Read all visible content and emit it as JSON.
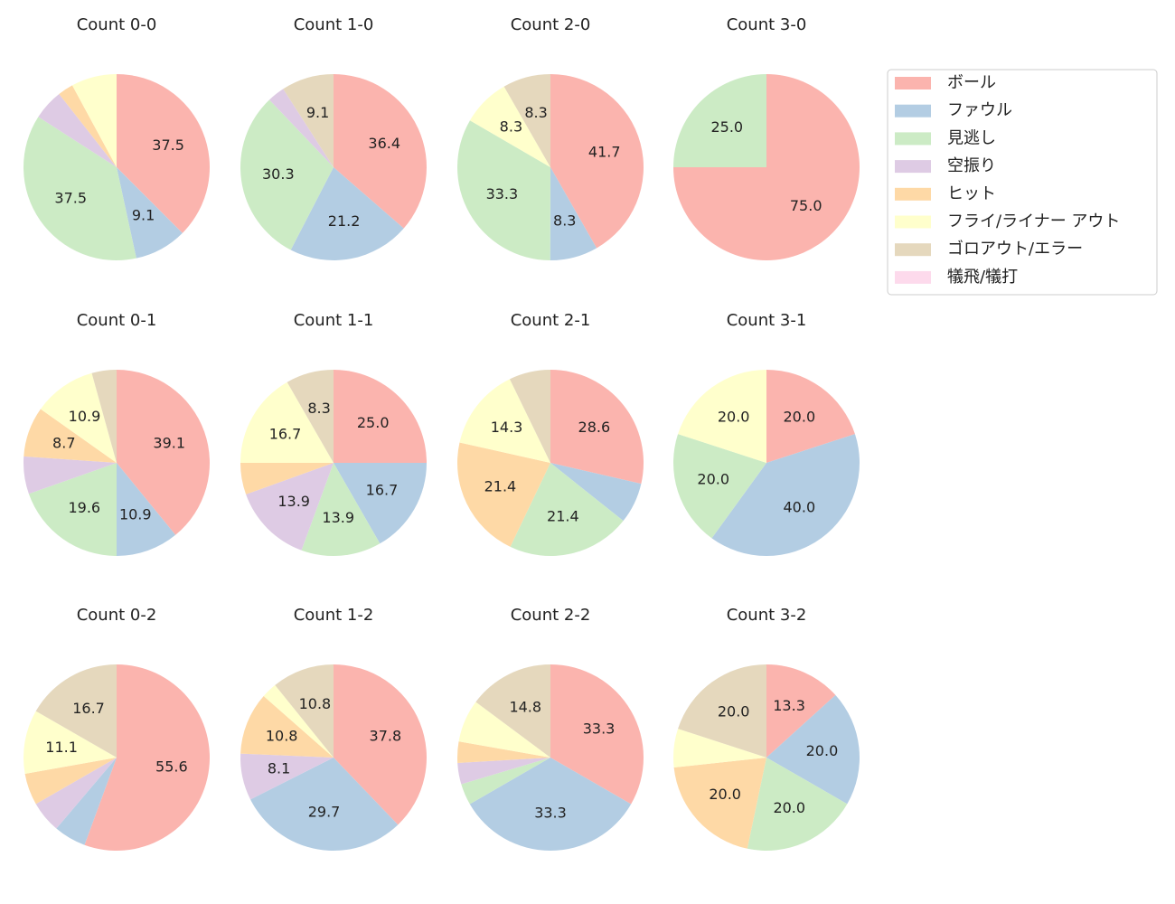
{
  "legend": {
    "labels": [
      "ボール",
      "ファウル",
      "見逃し",
      "空振り",
      "ヒット",
      "フライ/ライナー アウト",
      "ゴロアウト/エラー",
      "犠飛/犠打"
    ],
    "colors": [
      "#fbb4ae",
      "#b3cde3",
      "#ccebc5",
      "#decbe4",
      "#fed9a6",
      "#ffffcc",
      "#e5d8bd",
      "#fddaec"
    ],
    "loc": "upper right"
  },
  "chart_data": [
    {
      "type": "pie",
      "title": "Count 0-0",
      "values": [
        37.5,
        9.1,
        37.5,
        5.3,
        2.7,
        7.9,
        0,
        0
      ],
      "value_labels": [
        "37.5",
        "9.1",
        "37.5",
        null,
        null,
        null,
        null,
        null
      ]
    },
    {
      "type": "pie",
      "title": "Count 1-0",
      "values": [
        36.4,
        21.2,
        30.3,
        3.0,
        0,
        0,
        9.1,
        0
      ],
      "value_labels": [
        "36.4",
        "21.2",
        "30.3",
        null,
        null,
        null,
        "9.1",
        null
      ]
    },
    {
      "type": "pie",
      "title": "Count 2-0",
      "values": [
        41.7,
        8.3,
        33.3,
        0,
        0,
        8.3,
        8.3,
        0
      ],
      "value_labels": [
        "41.7",
        "8.3",
        "33.3",
        null,
        null,
        "8.3",
        "8.3",
        null
      ]
    },
    {
      "type": "pie",
      "title": "Count 3-0",
      "values": [
        75,
        0,
        25,
        0,
        0,
        0,
        0,
        0
      ],
      "value_labels": [
        "75.0",
        null,
        "25.0",
        null,
        null,
        null,
        null,
        null
      ]
    },
    {
      "type": "pie",
      "title": "Count 0-1",
      "values": [
        39.1,
        10.9,
        19.6,
        6.5,
        8.7,
        10.9,
        4.3,
        0
      ],
      "value_labels": [
        "39.1",
        "10.9",
        "19.6",
        null,
        "8.7",
        "10.9",
        null,
        null
      ]
    },
    {
      "type": "pie",
      "title": "Count 1-1",
      "values": [
        25,
        16.7,
        13.9,
        13.9,
        5.5,
        16.7,
        8.3,
        0
      ],
      "value_labels": [
        "25.0",
        "16.7",
        "13.9",
        "13.9",
        null,
        "16.7",
        "8.3",
        null
      ]
    },
    {
      "type": "pie",
      "title": "Count 2-1",
      "values": [
        28.6,
        7.1,
        21.4,
        0,
        21.4,
        14.3,
        7.2,
        0
      ],
      "value_labels": [
        "28.6",
        null,
        "21.4",
        null,
        "21.4",
        "14.3",
        null,
        null
      ]
    },
    {
      "type": "pie",
      "title": "Count 3-1",
      "values": [
        20,
        40,
        20,
        0,
        0,
        20,
        0,
        0
      ],
      "value_labels": [
        "20.0",
        "40.0",
        "20.0",
        null,
        null,
        "20.0",
        null,
        null
      ]
    },
    {
      "type": "pie",
      "title": "Count 0-2",
      "values": [
        55.6,
        5.6,
        0,
        5.5,
        5.5,
        11.1,
        16.7,
        0
      ],
      "value_labels": [
        "55.6",
        null,
        null,
        null,
        null,
        "11.1",
        "16.7",
        null
      ]
    },
    {
      "type": "pie",
      "title": "Count 1-2",
      "values": [
        37.8,
        29.7,
        0,
        8.1,
        10.8,
        2.7,
        10.8,
        0
      ],
      "value_labels": [
        "37.8",
        "29.7",
        null,
        "8.1",
        "10.8",
        null,
        "10.8",
        null
      ]
    },
    {
      "type": "pie",
      "title": "Count 2-2",
      "values": [
        33.3,
        33.3,
        3.7,
        3.7,
        3.7,
        7.4,
        14.8,
        0
      ],
      "value_labels": [
        "33.3",
        "33.3",
        null,
        null,
        null,
        null,
        "14.8",
        null
      ]
    },
    {
      "type": "pie",
      "title": "Count 3-2",
      "values": [
        13.3,
        20,
        20,
        0,
        20,
        6.7,
        20,
        0
      ],
      "value_labels": [
        "13.3",
        "20.0",
        "20.0",
        null,
        "20.0",
        null,
        "20.0",
        null
      ]
    }
  ]
}
